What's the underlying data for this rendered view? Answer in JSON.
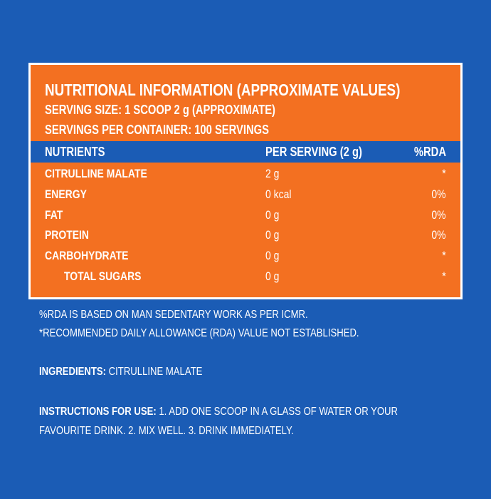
{
  "header": {
    "title": "NUTRITIONAL INFORMATION (APPROXIMATE VALUES)",
    "serving_size": "SERVING SIZE: 1 SCOOP 2 g (APPROXIMATE)",
    "servings_per_container": "SERVINGS PER CONTAINER: 100 SERVINGS"
  },
  "table": {
    "columns": [
      "NUTRIENTS",
      "PER SERVING (2 g)",
      "%RDA"
    ],
    "rows": [
      [
        "CITRULLINE MALATE",
        "2 g",
        "*"
      ],
      [
        "ENERGY",
        "0 kcal",
        "0%"
      ],
      [
        "FAT",
        "0 g",
        "0%"
      ],
      [
        "PROTEIN",
        "0 g",
        "0%"
      ],
      [
        "CARBOHYDRATE",
        "0 g",
        "*"
      ],
      [
        "TOTAL SUGARS",
        "0 g",
        "*"
      ]
    ]
  },
  "notes": [
    "%RDA IS BASED ON MAN SEDENTARY WORK AS PER ICMR.",
    "*RECOMMENDED DAILY ALLOWANCE (RDA) VALUE NOT ESTABLISHED."
  ],
  "ingredients": {
    "label": "INGREDIENTS:",
    "text": "CITRULLINE MALATE"
  },
  "instructions": {
    "label": "INSTRUCTIONS FOR USE:",
    "text": [
      "1.  ADD ONE SCOOP IN A GLASS OF WATER OR YOUR",
      "FAVOURITE DRINK. 2.  MIX WELL. 3.  DRINK IMMEDIATELY."
    ]
  }
}
